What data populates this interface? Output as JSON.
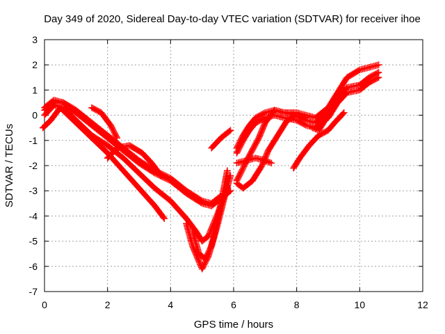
{
  "chart_data": {
    "type": "scatter",
    "title": "Day 349 of 2020, Sidereal Day-to-day VTEC variation (SDTVAR) for receiver ihoe",
    "xlabel": "GPS time / hours",
    "ylabel": "SDTVAR / TECUs",
    "xlim": [
      0,
      12
    ],
    "ylim": [
      -7,
      3
    ],
    "xticks": [
      0,
      2,
      4,
      6,
      8,
      10,
      12
    ],
    "yticks": [
      -7,
      -6,
      -5,
      -4,
      -3,
      -2,
      -1,
      0,
      1,
      2,
      3
    ],
    "grid": true,
    "marker": "+",
    "color": "#ff0000",
    "series": [
      {
        "x": [
          0.0,
          0.3,
          0.6,
          1.0,
          1.5,
          2.0,
          2.5,
          3.0,
          3.5,
          4.0,
          4.5,
          5.0,
          5.3,
          5.6,
          5.9
        ],
        "y": [
          0.2,
          0.5,
          0.5,
          0.1,
          -0.4,
          -0.9,
          -1.4,
          -1.9,
          -2.3,
          -2.6,
          -3.1,
          -3.5,
          -3.6,
          -3.3,
          -3.0
        ]
      },
      {
        "x": [
          0.0,
          0.3,
          0.6,
          1.0,
          1.5,
          2.0,
          2.5,
          3.0,
          3.5,
          4.0,
          4.5,
          5.0,
          5.3,
          5.6
        ],
        "y": [
          0.3,
          0.6,
          0.5,
          0.2,
          -0.3,
          -0.8,
          -1.3,
          -1.8,
          -2.2,
          -2.5,
          -3.0,
          -3.4,
          -3.5,
          -3.2
        ]
      },
      {
        "x": [
          0.0,
          0.3,
          0.6,
          1.0,
          1.5,
          2.0,
          2.5,
          3.0,
          3.5,
          4.0,
          4.5,
          4.8,
          5.0,
          5.2,
          5.5,
          5.8
        ],
        "y": [
          0.0,
          0.4,
          0.3,
          -0.2,
          -0.8,
          -1.2,
          -1.7,
          -2.3,
          -2.9,
          -3.4,
          -4.1,
          -4.6,
          -5.0,
          -4.8,
          -3.9,
          -2.8
        ]
      },
      {
        "x": [
          -0.05,
          0.2,
          0.5,
          1.0,
          1.5,
          2.0,
          2.5,
          3.0,
          3.5,
          3.8
        ],
        "y": [
          -0.5,
          -0.2,
          0.3,
          -0.3,
          -0.9,
          -1.5,
          -2.2,
          -2.9,
          -3.6,
          -4.1
        ]
      },
      {
        "x": [
          4.5,
          4.7,
          4.9,
          5.0,
          5.2,
          5.4,
          5.6,
          5.8
        ],
        "y": [
          -4.3,
          -5.2,
          -5.8,
          -6.1,
          -5.6,
          -4.7,
          -3.5,
          -2.2
        ]
      },
      {
        "x": [
          4.7,
          4.9,
          5.1,
          5.3,
          5.5,
          5.7,
          5.9
        ],
        "y": [
          -4.6,
          -5.5,
          -5.7,
          -5.2,
          -4.3,
          -3.3,
          -2.4
        ]
      },
      {
        "x": [
          1.5,
          1.8,
          2.1,
          2.3
        ],
        "y": [
          0.3,
          0.1,
          -0.4,
          -0.9
        ]
      },
      {
        "x": [
          2.0,
          2.3,
          2.7,
          3.1,
          3.4,
          3.7
        ],
        "y": [
          -1.7,
          -1.3,
          -1.2,
          -1.5,
          -1.9,
          -2.4
        ]
      },
      {
        "x": [
          5.3,
          5.6,
          5.9
        ],
        "y": [
          -1.3,
          -0.9,
          -0.6
        ]
      },
      {
        "x": [
          6.1,
          6.3,
          6.5,
          6.7,
          7.0,
          7.3,
          7.6,
          8.0,
          8.3,
          8.6,
          9.0,
          9.3,
          9.6,
          10.0,
          10.3,
          10.6
        ],
        "y": [
          -1.3,
          -0.8,
          -0.4,
          -0.1,
          0.1,
          0.2,
          0.1,
          0.0,
          -0.2,
          -0.3,
          0.1,
          0.7,
          1.1,
          1.2,
          1.5,
          1.7
        ]
      },
      {
        "x": [
          6.1,
          6.3,
          6.5,
          6.7,
          7.0,
          7.3,
          7.6,
          8.0,
          8.3,
          8.6,
          9.0,
          9.3,
          9.6,
          10.0,
          10.3,
          10.6
        ],
        "y": [
          -1.5,
          -1.0,
          -0.6,
          -0.3,
          -0.1,
          0.0,
          -0.1,
          -0.2,
          -0.4,
          -0.5,
          -0.1,
          0.5,
          0.9,
          1.0,
          1.3,
          1.5
        ]
      },
      {
        "x": [
          6.1,
          6.3,
          6.5,
          6.8,
          7.0,
          7.3,
          7.6,
          8.0,
          8.3,
          8.6,
          9.0,
          9.3,
          9.6,
          10.0,
          10.3,
          10.6
        ],
        "y": [
          -2.6,
          -2.1,
          -1.6,
          -0.9,
          -0.3,
          0.2,
          0.1,
          0.1,
          0.0,
          -0.1,
          0.3,
          0.9,
          1.5,
          1.8,
          1.9,
          2.0
        ]
      },
      {
        "x": [
          6.1,
          6.3,
          6.6,
          6.9,
          7.1,
          7.4,
          7.7,
          8.0,
          8.3
        ],
        "y": [
          -2.7,
          -2.9,
          -2.6,
          -2.0,
          -1.4,
          -0.8,
          -0.2,
          0.0,
          -0.1
        ]
      },
      {
        "x": [
          6.1,
          6.4,
          6.7,
          7.0,
          7.2
        ],
        "y": [
          -1.9,
          -1.8,
          -1.7,
          -1.8,
          -1.9
        ]
      },
      {
        "x": [
          7.9,
          8.1,
          8.4,
          8.7,
          9.0,
          9.2,
          9.5
        ],
        "y": [
          -2.1,
          -1.7,
          -1.2,
          -0.8,
          -0.6,
          -0.3,
          0.1
        ]
      },
      {
        "x": [
          8.5,
          8.7,
          8.9,
          9.0
        ],
        "y": [
          -0.5,
          -0.6,
          -0.2,
          0.1
        ]
      }
    ]
  }
}
